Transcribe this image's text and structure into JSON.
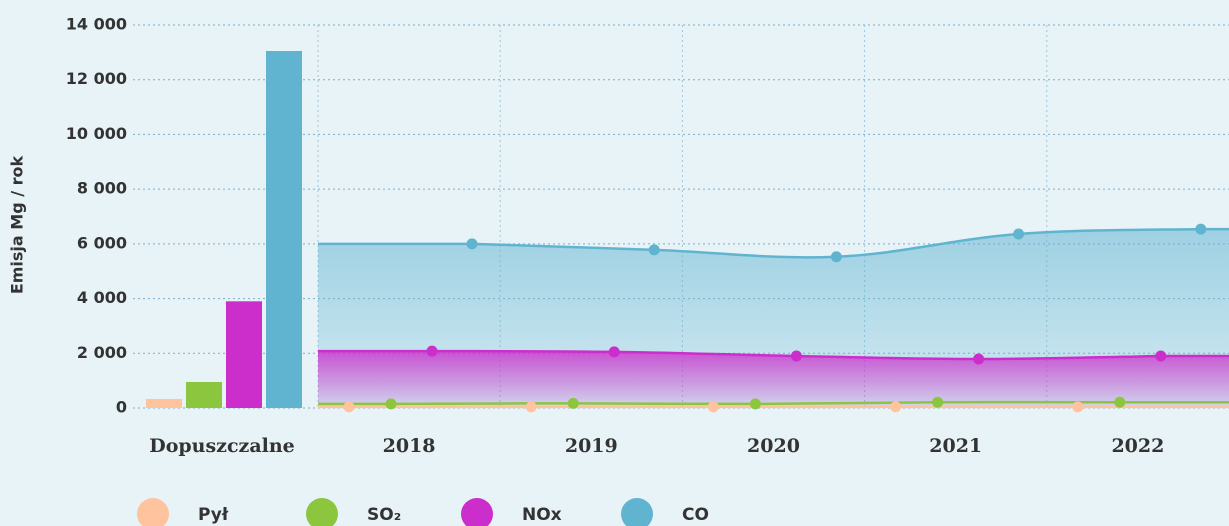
{
  "chart_data": {
    "type": "area",
    "y_label": "Emisja Mg / rok",
    "limit_category": "Dopuszczalne",
    "categories": [
      "2018",
      "2019",
      "2020",
      "2021",
      "2022"
    ],
    "series": [
      {
        "name": "Pył",
        "color": "#ffc49e",
        "limit": 330,
        "values": [
          40,
          40,
          40,
          40,
          40
        ]
      },
      {
        "name": "SO₂",
        "color": "#8cc63f",
        "limit": 950,
        "values": [
          150,
          170,
          150,
          210,
          210
        ]
      },
      {
        "name": "NOx",
        "color": "#cc2ecc",
        "limit": 3900,
        "values": [
          2080,
          2050,
          1900,
          1790,
          1900
        ]
      },
      {
        "name": "CO",
        "color": "#60b4d0",
        "limit": 13050,
        "values": [
          6000,
          5780,
          5530,
          6360,
          6540
        ]
      }
    ],
    "ylim": [
      0,
      14000
    ],
    "yticks": [
      0,
      {
        "value": 2000,
        "label": "2 000"
      },
      {
        "value": 4000,
        "label": "4 000"
      },
      {
        "value": 6000,
        "label": "6 000"
      },
      {
        "value": 8000,
        "label": "8 000"
      },
      {
        "value": 10000,
        "label": "10 000"
      },
      {
        "value": 12000,
        "label": "12 000"
      },
      {
        "value": 14000,
        "label": "14 000"
      }
    ],
    "grid": true
  }
}
